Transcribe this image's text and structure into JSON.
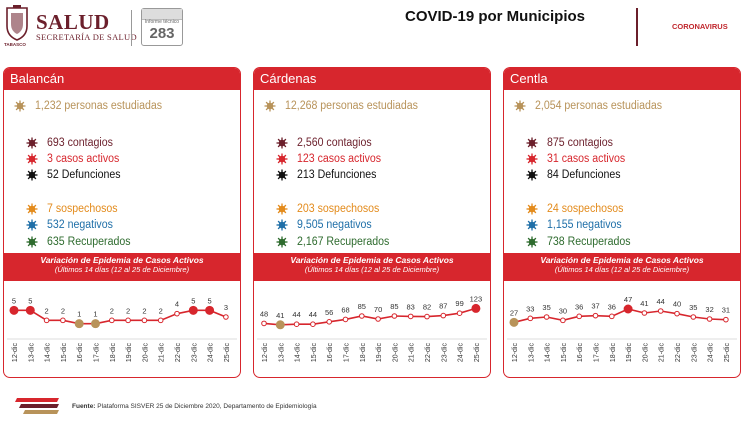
{
  "header": {
    "brand": "SALUD",
    "subtitle": "SECRETARÍA DE SALUD",
    "state": "TABASCO",
    "calendar_label": "Informe técnico",
    "calendar_number": "283",
    "title": "COVID-19 por Municipios",
    "corona_label": "CORONAVIRUS"
  },
  "colors": {
    "accent": "#d7262d",
    "studied": "#b8935a",
    "contagios": "#6b1f2b",
    "activos": "#d7262d",
    "defunciones": "#111111",
    "sospechosos": "#e38b1c",
    "negativos": "#1f6fa8",
    "recuperados": "#2e6b2e"
  },
  "icons": {
    "studied": "virus-icon",
    "contagios": "virus-icon",
    "activos": "virus-icon",
    "defunciones": "virus-icon",
    "sospechosos": "virus-icon",
    "negativos": "virus-icon",
    "recuperados": "virus-icon"
  },
  "panels": [
    {
      "name": "Balancán",
      "studied": "1,232 personas estudiadas",
      "contagios": "693 contagios",
      "activos": "3 casos activos",
      "defunciones": "52 Defunciones",
      "sospechosos": "7 sospechosos",
      "negativos": "532 negativos",
      "recuperados": "635 Recuperados",
      "chart_title": "Variación de Epidemia de Casos Activos",
      "chart_subtitle": "(Últimos 14 días (12 al 25 de Diciembre)"
    },
    {
      "name": "Cárdenas",
      "studied": "12,268 personas estudiadas",
      "contagios": "2,560 contagios",
      "activos": "123 casos activos",
      "defunciones": "213 Defunciones",
      "sospechosos": "203 sospechosos",
      "negativos": "9,505 negativos",
      "recuperados": "2,167 Recuperados",
      "chart_title": "Variación de Epidemia de Casos Activos",
      "chart_subtitle": "(Últimos 14 días (12 al 25 de Diciembre)"
    },
    {
      "name": "Centla",
      "studied": "2,054 personas estudiadas",
      "contagios": "875 contagios",
      "activos": "31 casos activos",
      "defunciones": "84 Defunciones",
      "sospechosos": "24 sospechosos",
      "negativos": "1,155 negativos",
      "recuperados": "738 Recuperados",
      "chart_title": "Variación de Epidemia de Casos Activos",
      "chart_subtitle": "(Últimos 14 días (12 al 25 de Diciembre)"
    }
  ],
  "chart_data": [
    {
      "type": "line",
      "categories": [
        "12-dic",
        "13-dic",
        "14-dic",
        "15-dic",
        "16-dic",
        "17-dic",
        "18-dic",
        "19-dic",
        "20-dic",
        "21-dic",
        "22-dic",
        "23-dic",
        "24-dic",
        "25-dic"
      ],
      "series": [
        {
          "values": [
            5,
            5,
            2,
            2,
            1,
            1,
            2,
            2,
            2,
            2,
            4,
            5,
            5,
            3
          ]
        }
      ],
      "title": "Variación de Epidemia de Casos Activos",
      "subtitle": "(Últimos 14 días (12 al 25 de Diciembre)",
      "highlight_max": [
        0,
        1,
        11,
        12
      ],
      "highlight_min": [
        4,
        5
      ],
      "ylim": [
        0,
        6
      ]
    },
    {
      "type": "line",
      "categories": [
        "12-dic",
        "13-dic",
        "14-dic",
        "15-dic",
        "16-dic",
        "17-dic",
        "18-dic",
        "19-dic",
        "20-dic",
        "21-dic",
        "22-dic",
        "23-dic",
        "24-dic",
        "25-dic"
      ],
      "series": [
        {
          "values": [
            48,
            41,
            44,
            44,
            56,
            68,
            85,
            70,
            85,
            83,
            82,
            87,
            99,
            123
          ]
        }
      ],
      "title": "Variación de Epidemia de Casos Activos",
      "subtitle": "(Últimos 14 días (12 al 25 de Diciembre)",
      "highlight_max": [
        13
      ],
      "highlight_min": [
        1
      ],
      "ylim": [
        30,
        130
      ]
    },
    {
      "type": "line",
      "categories": [
        "12-dic",
        "13-dic",
        "14-dic",
        "15-dic",
        "16-dic",
        "17-dic",
        "18-dic",
        "19-dic",
        "20-dic",
        "21-dic",
        "22-dic",
        "23-dic",
        "24-dic",
        "25-dic"
      ],
      "series": [
        {
          "values": [
            27,
            33,
            35,
            30,
            36,
            37,
            36,
            47,
            41,
            44,
            40,
            35,
            32,
            31
          ]
        }
      ],
      "title": "Variación de Epidemia de Casos Activos",
      "subtitle": "(Últimos 14 días (12 al 25 de Diciembre)",
      "highlight_max": [
        7
      ],
      "highlight_min": [
        0
      ],
      "ylim": [
        20,
        50
      ]
    }
  ],
  "footer": {
    "label": "Fuente:",
    "text": "Plataforma SISVER 25 de Diciembre 2020, Departamento de Epidemiología"
  }
}
